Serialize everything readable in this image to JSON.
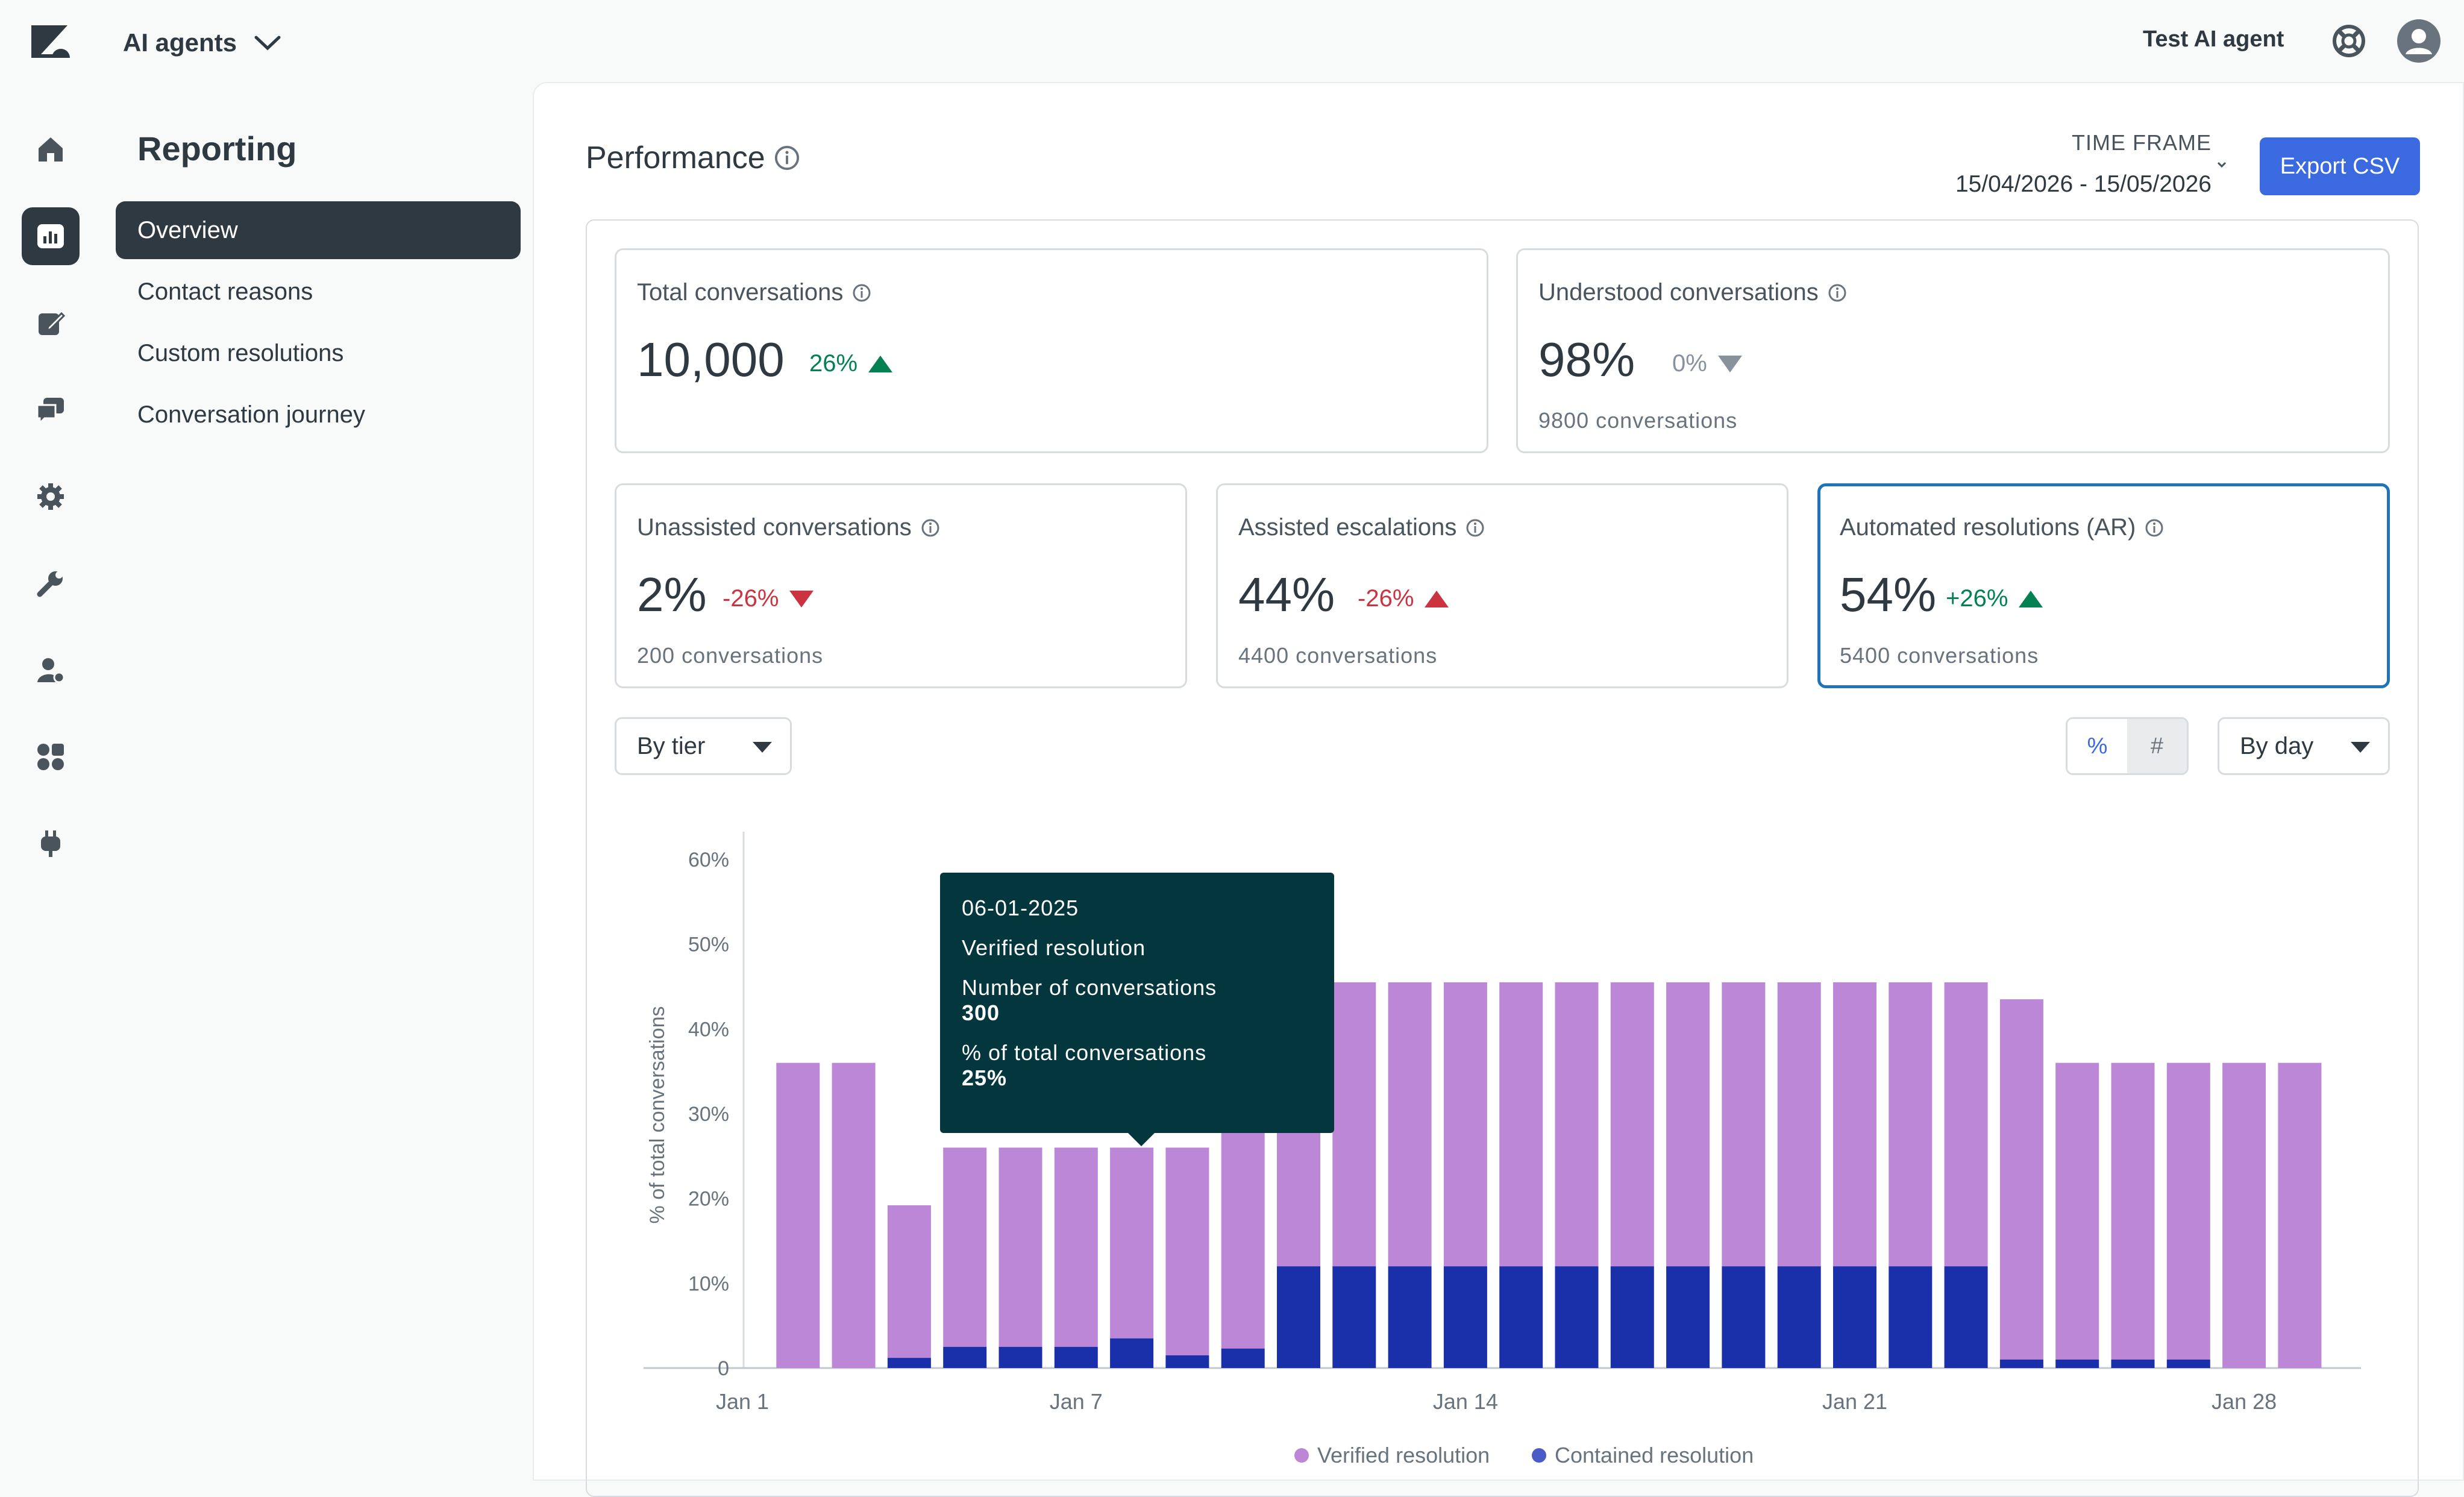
{
  "header": {
    "product_label": "AI agents",
    "user_name": "Test AI agent"
  },
  "rail": {
    "items": [
      {
        "name": "home-icon"
      },
      {
        "name": "reporting-icon",
        "active": true
      },
      {
        "name": "edit-icon"
      },
      {
        "name": "chat-icon"
      },
      {
        "name": "settings-icon"
      },
      {
        "name": "wrench-icon"
      },
      {
        "name": "user-settings-icon"
      },
      {
        "name": "apps-icon"
      },
      {
        "name": "plug-icon"
      }
    ]
  },
  "sidebar": {
    "title": "Reporting",
    "items": [
      {
        "label": "Overview",
        "active": true
      },
      {
        "label": "Contact reasons"
      },
      {
        "label": "Custom resolutions"
      },
      {
        "label": "Conversation journey"
      }
    ]
  },
  "page": {
    "title": "Performance",
    "timeframe_label": "TIME FRAME",
    "timeframe_value": "15/04/2026 - 15/05/2026",
    "export_label": "Export CSV"
  },
  "cards": {
    "total": {
      "title": "Total conversations",
      "value": "10,000",
      "delta": "26%",
      "trend": "up"
    },
    "understood": {
      "title": "Understood conversations",
      "value": "98%",
      "delta": "0%",
      "trend": "flat",
      "sub": "9800 conversations"
    },
    "unassisted": {
      "title": "Unassisted conversations",
      "value": "2%",
      "delta": "-26%",
      "trend": "down",
      "sub": "200 conversations"
    },
    "escalations": {
      "title": "Assisted escalations",
      "value": "44%",
      "delta": "-26%",
      "trend": "up-red",
      "sub": "4400 conversations"
    },
    "automated": {
      "title": "Automated resolutions (AR)",
      "value": "54%",
      "delta": "+26%",
      "trend": "up",
      "sub": "5400 conversations"
    }
  },
  "controls": {
    "tier_select": "By tier",
    "percent_toggle": "%",
    "count_toggle": "#",
    "period_select": "By day"
  },
  "tooltip": {
    "date": "06-01-2025",
    "series": "Verified resolution",
    "count_label": "Number of conversations",
    "count_value": "300",
    "pct_label": "% of total conversations",
    "pct_value": "25%"
  },
  "colors": {
    "verified": "#bc87d6",
    "contained": "#1a2faa",
    "accent": "#3b6ae0"
  },
  "chart_data": {
    "type": "bar",
    "stacked": true,
    "ylabel": "% of total conversations",
    "ylim": [
      0,
      60
    ],
    "yticks": [
      "0",
      "10%",
      "20%",
      "30%",
      "40%",
      "50%",
      "60%"
    ],
    "xtick_labels": [
      {
        "day": 1,
        "label": "Jan 1"
      },
      {
        "day": 7,
        "label": "Jan 7"
      },
      {
        "day": 14,
        "label": "Jan 14"
      },
      {
        "day": 21,
        "label": "Jan 21"
      },
      {
        "day": 28,
        "label": "Jan 28"
      }
    ],
    "days": [
      2,
      3,
      4,
      5,
      6,
      7,
      8,
      9,
      10,
      11,
      12,
      13,
      14,
      15,
      16,
      17,
      18,
      19,
      20,
      21,
      22,
      23,
      24,
      25,
      26,
      27,
      28,
      29
    ],
    "series": [
      {
        "name": "Contained resolution",
        "values": [
          0,
          0,
          1.2,
          2.5,
          2.5,
          2.5,
          3.5,
          1.5,
          2.3,
          12,
          12,
          12,
          12,
          12,
          12,
          12,
          12,
          12,
          12,
          12,
          12,
          12,
          1,
          1,
          1,
          1,
          0,
          0
        ]
      },
      {
        "name": "Verified resolution",
        "values": [
          36,
          36,
          18,
          23.5,
          23.5,
          23.5,
          22.5,
          24.5,
          36,
          33.5,
          33.5,
          33.5,
          33.5,
          33.5,
          33.5,
          33.5,
          33.5,
          33.5,
          33.5,
          33.5,
          33.5,
          33.5,
          42.5,
          35,
          35,
          35,
          36,
          36
        ]
      }
    ],
    "legend": [
      "Verified resolution",
      "Contained resolution"
    ],
    "legend_position": "bottom"
  }
}
